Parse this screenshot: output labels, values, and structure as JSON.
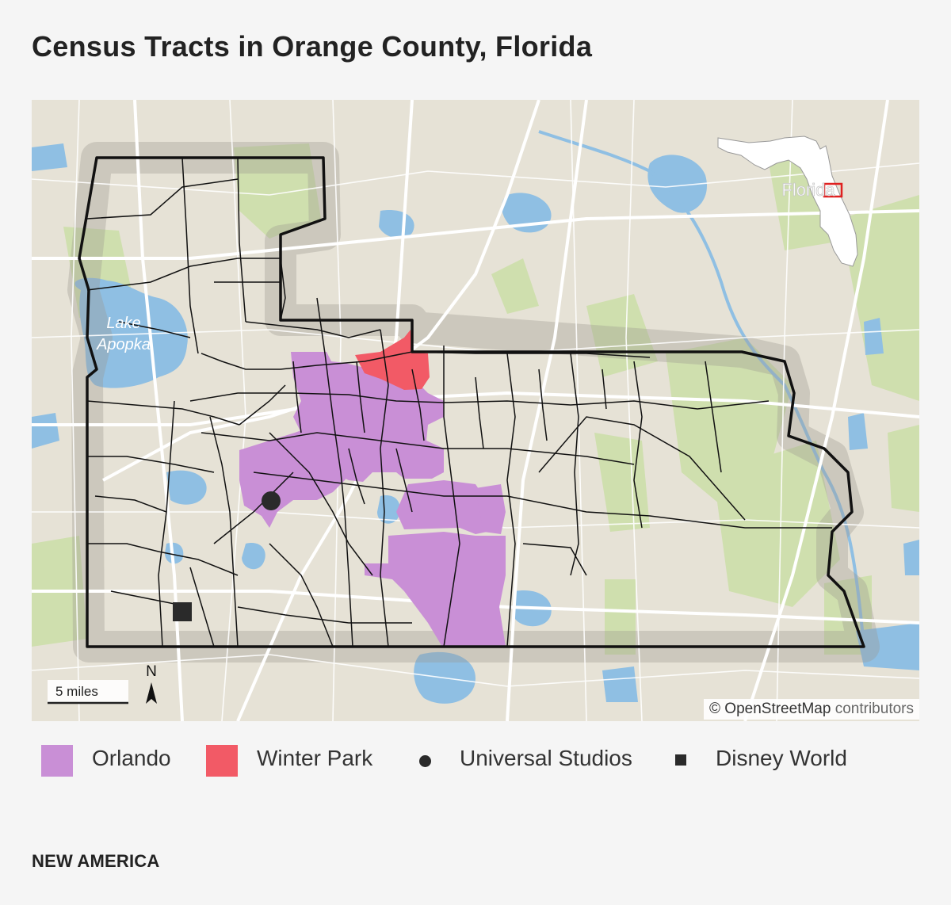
{
  "title": "Census Tracts in Orange County, Florida",
  "map": {
    "lake_label_line1": "Lake",
    "lake_label_line2": "Apopka",
    "inset_label": "Florida",
    "scale_label": "5 miles",
    "north_label": "N",
    "attribution_symbol": "©",
    "attribution_main": "OpenStreetMap",
    "attribution_rest": "contributors"
  },
  "legend": [
    {
      "label": "Orlando",
      "symbol": "square-swatch",
      "color": "#c98fd6"
    },
    {
      "label": "Winter Park",
      "symbol": "square-swatch",
      "color": "#f25a66"
    },
    {
      "label": "Universal Studios",
      "symbol": "circle-marker",
      "color": "#2a2a2a"
    },
    {
      "label": "Disney World",
      "symbol": "square-marker",
      "color": "#2a2a2a"
    }
  ],
  "colors": {
    "land": "#e6e2d6",
    "water": "#8fbfe3",
    "park": "#cfdfae",
    "roads": "#ffffff",
    "boundary": "#111111",
    "orlando": "#c98fd6",
    "winter_park": "#f25a66"
  },
  "footer": "NEW AMERICA"
}
